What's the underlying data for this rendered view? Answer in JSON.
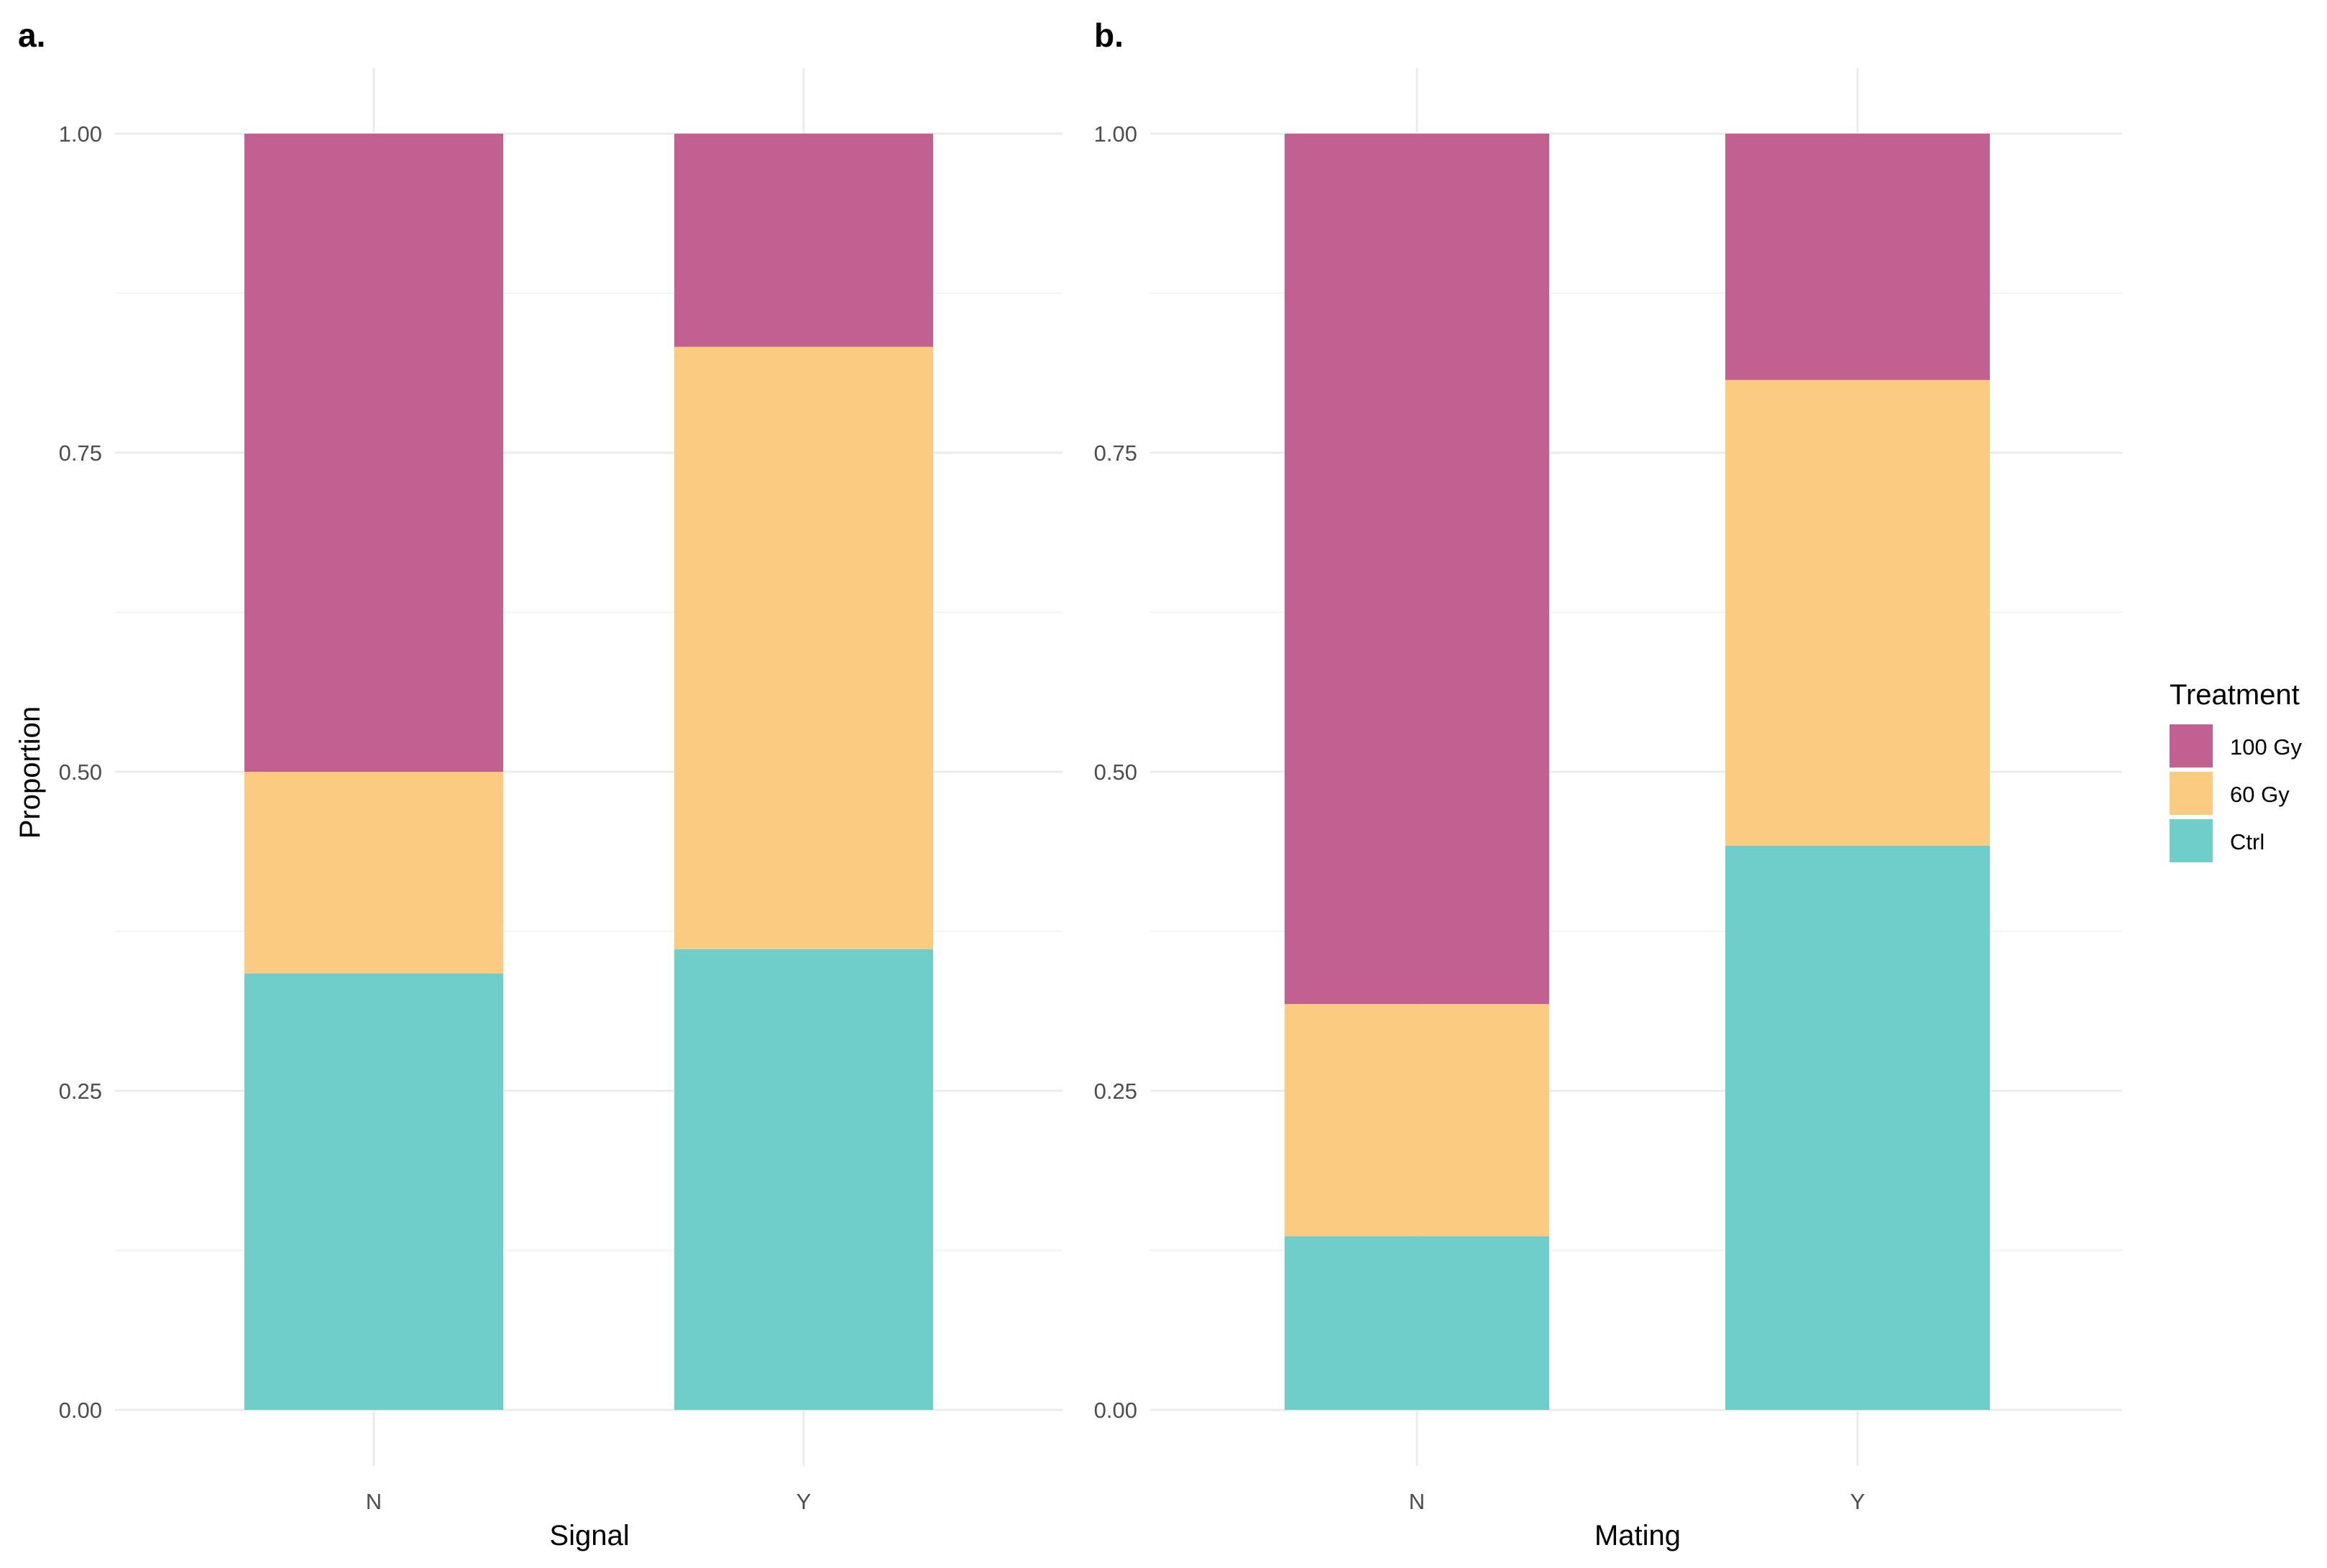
{
  "legend": {
    "title": "Treatment",
    "items": [
      {
        "label": "100 Gy",
        "color": "#C2618F"
      },
      {
        "label": "60 Gy",
        "color": "#FACB80"
      },
      {
        "label": "Ctrl",
        "color": "#6FCDCA"
      }
    ]
  },
  "chart_data": [
    {
      "panel": "a.",
      "type": "bar",
      "stacked": true,
      "categories": [
        "N",
        "Y"
      ],
      "xlabel": "Signal",
      "ylabel": "Proportion",
      "ylim": [
        0,
        1
      ],
      "yticks": [
        "0.00",
        "0.25",
        "0.50",
        "0.75",
        "1.00"
      ],
      "series": [
        {
          "name": "Ctrl",
          "values": [
            0.342,
            0.361
          ]
        },
        {
          "name": "60 Gy",
          "values": [
            0.158,
            0.472
          ]
        },
        {
          "name": "100 Gy",
          "values": [
            0.5,
            0.167
          ]
        }
      ]
    },
    {
      "panel": "b.",
      "type": "bar",
      "stacked": true,
      "categories": [
        "N",
        "Y"
      ],
      "xlabel": "Mating",
      "ylabel": "",
      "ylim": [
        0,
        1
      ],
      "yticks": [
        "0.00",
        "0.25",
        "0.50",
        "0.75",
        "1.00"
      ],
      "series": [
        {
          "name": "Ctrl",
          "values": [
            0.136,
            0.442
          ]
        },
        {
          "name": "60 Gy",
          "values": [
            0.182,
            0.365
          ]
        },
        {
          "name": "100 Gy",
          "values": [
            0.682,
            0.193
          ]
        }
      ]
    }
  ]
}
